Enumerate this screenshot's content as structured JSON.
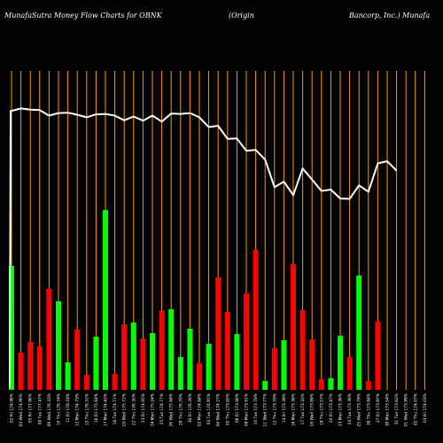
{
  "header": {
    "left": "MunafaSutra  Money Flow  Charts for OBNK",
    "middle": "(Origin",
    "right": "Bancorp, Inc.) Munafa"
  },
  "chart_data": {
    "type": "bar",
    "title": "MunafaSutra  Money Flow  Charts for OBNK (Origin Bancorp, Inc.) Munafa",
    "categories": [
      "02 Fri 174.96%",
      "03 Wed 174.90%",
      "05 Fri 177.86%",
      "08 Tue 177.47%",
      "09 Wed 176.33%",
      "10 Thu 176.74%",
      "11 Fri 178.33%",
      "12 Mon 174.73%",
      "15 Thu 176.52%",
      "16 Fri 175.64%",
      "17 Mon 174.42%",
      "18 Tue 174.71%",
      "19 Wed 175.72%",
      "22 Thu 176.30%",
      "23 Fri 174.85%",
      "24 Mon 175.24%",
      "25 Tue 174.77%",
      "26 Wed 175.84%",
      "29 Thu 176.70%",
      "30 Fri 176.26%",
      "02 Mon 174.84%",
      "03 Tue 174.65%",
      "04 Wed 174.27%",
      "05 Thu 173.95%",
      "06 Fri 173.86%",
      "09 Mon 173.91%",
      "10 Tue 173.78%",
      "11 Wed 173.77%",
      "12 Thu 173.79%",
      "13 Fri 173.39%",
      "16 Mon 173.36%",
      "17 Tue 173.32%",
      "18 Wed 173.89%",
      "19 Thu 173.57%",
      "20 Fri 173.47%",
      "23 Mon 173.36%",
      "24 Tue 173.38%",
      "25 Wed 173.79%",
      "26 Thu 173.84%",
      "27 Fri 173.97%",
      "30 Mon 173.54%",
      "31 Tue 173.62%",
      "01 Wed 173.99%",
      "02 Thu 174.07%",
      "03 Fri 174.03%"
    ],
    "series": [
      {
        "values": [
          140,
          42,
          54,
          49,
          114,
          100,
          31,
          68,
          17,
          60,
          203,
          18,
          74,
          76,
          58,
          64,
          89,
          91,
          37,
          69,
          30,
          52,
          127,
          88,
          63,
          109,
          158,
          10,
          47,
          56,
          142,
          90,
          57,
          12,
          13,
          61,
          37,
          129,
          10,
          77,
          0,
          0,
          0,
          0,
          0
        ],
        "colors": [
          "green",
          "red",
          "red",
          "red",
          "red",
          "green",
          "green",
          "red",
          "red",
          "green",
          "green",
          "red",
          "red",
          "green",
          "red",
          "green",
          "red",
          "green",
          "green",
          "green",
          "red",
          "green",
          "red",
          "red",
          "green",
          "red",
          "red",
          "green",
          "red",
          "green",
          "red",
          "red",
          "red",
          "red",
          "green",
          "green",
          "red",
          "green",
          "red",
          "red",
          "red",
          "red",
          "red",
          "red",
          "red"
        ]
      },
      {
        "values": [
          173.4,
          174.0,
          173.7,
          173.6,
          172.3,
          172.9,
          173.0,
          172.5,
          171.9,
          172.6,
          172.7,
          172.3,
          171.2,
          172.1,
          171.1,
          172.3,
          170.9,
          172.8,
          172.7,
          172.9,
          171.9,
          169.6,
          169.9,
          166.8,
          166.9,
          164.0,
          164.2,
          161.9,
          155.4,
          156.7,
          153.5,
          159.8,
          157.2,
          154.5,
          154.8,
          152.7,
          152.6,
          155.8,
          154.3,
          161.0,
          161.5,
          159.3,
          0,
          0,
          0
        ]
      }
    ],
    "colors": {
      "positive": "#00ff00",
      "negative": "#ff0000",
      "line": "#ffffff",
      "gridline": "#ff9900",
      "background": "#000000"
    }
  }
}
